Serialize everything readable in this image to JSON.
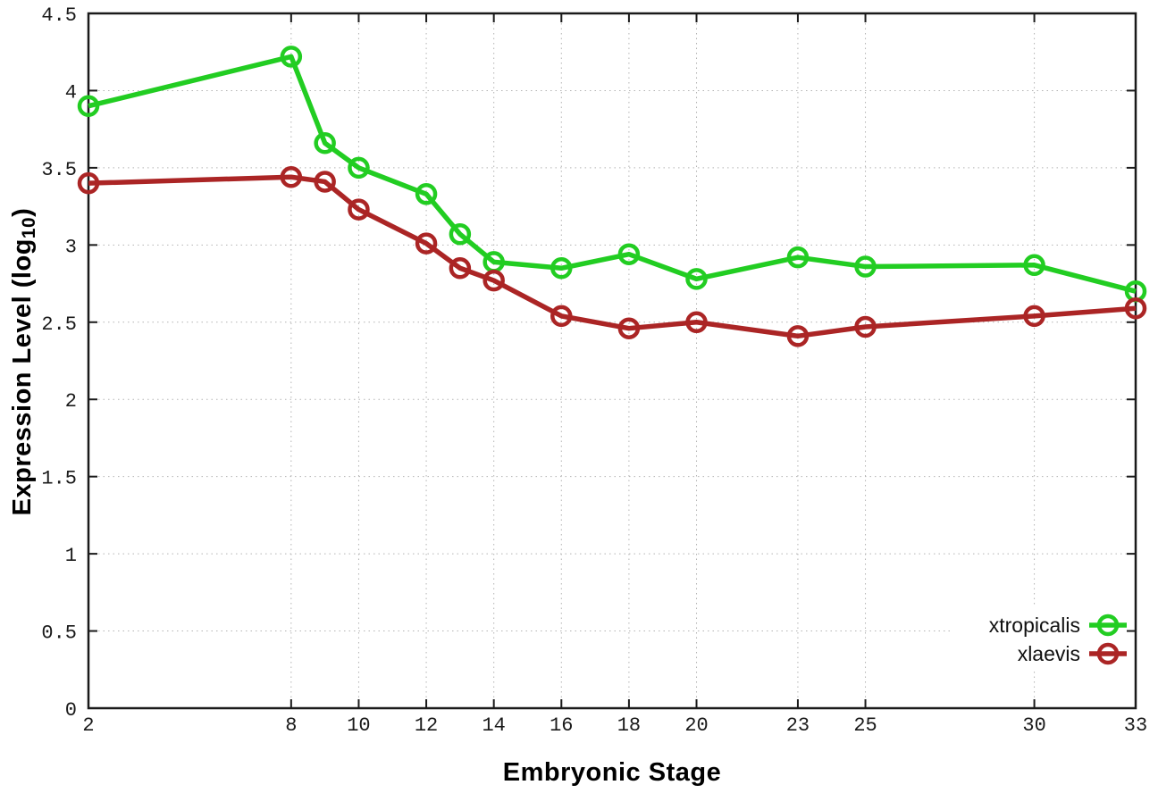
{
  "figure": {
    "xlabel": "Embryonic Stage",
    "ylabel_prefix": "Expression Level (log",
    "ylabel_sub": "10",
    "ylabel_suffix": ")"
  },
  "chart_data": {
    "type": "line",
    "title": "",
    "xlabel": "Embryonic Stage",
    "ylabel": "Expression Level (log10)",
    "x": [
      2,
      8,
      9,
      10,
      12,
      13,
      14,
      16,
      18,
      20,
      23,
      25,
      30,
      33
    ],
    "series": [
      {
        "name": "xtropicalis",
        "color": "#22cd22",
        "marker": "open-circle",
        "values": [
          3.9,
          4.22,
          3.66,
          3.5,
          3.33,
          3.07,
          2.89,
          2.85,
          2.94,
          2.78,
          2.92,
          2.86,
          2.87,
          2.7
        ]
      },
      {
        "name": "xlaevis",
        "color": "#ab2525",
        "marker": "open-circle",
        "values": [
          3.4,
          3.44,
          3.41,
          3.23,
          3.01,
          2.85,
          2.77,
          2.54,
          2.46,
          2.5,
          2.41,
          2.47,
          2.54,
          2.59
        ]
      }
    ],
    "xlim": [
      2,
      33
    ],
    "ylim": [
      0,
      4.5
    ],
    "xticks": [
      2,
      8,
      10,
      12,
      14,
      16,
      18,
      20,
      23,
      25,
      30,
      33
    ],
    "yticks": [
      0,
      0.5,
      1,
      1.5,
      2,
      2.5,
      3,
      3.5,
      4,
      4.5
    ],
    "grid": true,
    "grid_style": "dotted",
    "legend_position": "inside-bottom-right",
    "border": "full-box-mirrored-ticks",
    "colors": {
      "axis": "#1a1a1a",
      "tick_label": "#1a1a1a",
      "grid": "#b3b3b3",
      "background": "#ffffff"
    }
  }
}
